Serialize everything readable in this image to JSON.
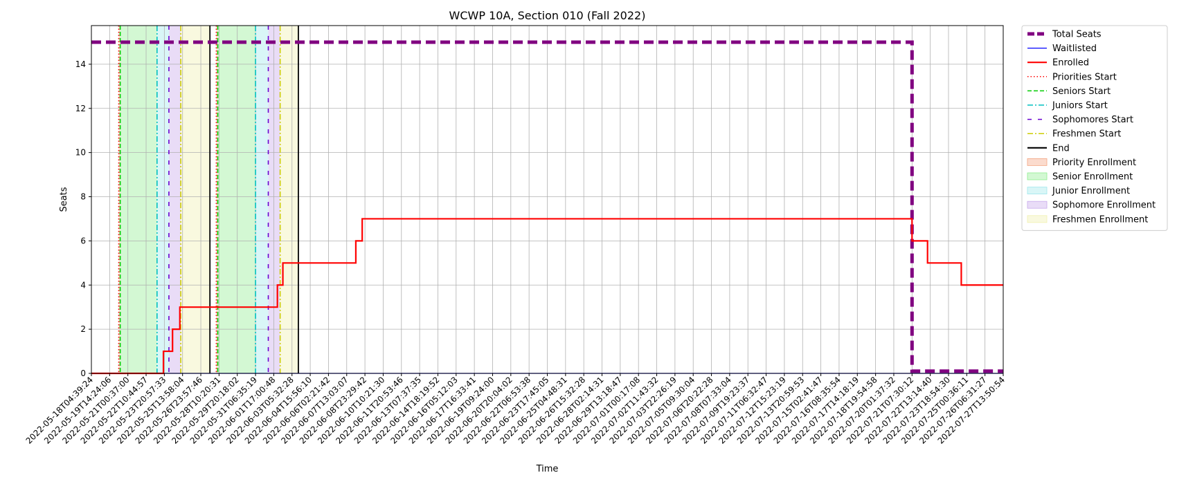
{
  "chart_data": {
    "type": "line",
    "title": "WCWP 10A, Section 010 (Fall 2022)",
    "xlabel": "Time",
    "ylabel": "Seats",
    "ylim": [
      0,
      15.75
    ],
    "y_ticks": [
      0,
      2,
      4,
      6,
      8,
      10,
      12,
      14
    ],
    "grid": true,
    "legend_position": "outside-right",
    "x_ticks": [
      "2022-05-18T04:39:24",
      "2022-05-19T14:24:06",
      "2022-05-21T00:37:00",
      "2022-05-22T10:44:57",
      "2022-05-23T20:57:33",
      "2022-05-25T13:58:04",
      "2022-05-26T23:57:46",
      "2022-05-28T10:20:31",
      "2022-05-29T20:18:02",
      "2022-05-31T06:35:19",
      "2022-06-01T17:00:48",
      "2022-06-03T05:32:28",
      "2022-06-04T15:56:10",
      "2022-06-06T02:21:42",
      "2022-06-07T13:03:07",
      "2022-06-08T23:29:42",
      "2022-06-10T10:21:30",
      "2022-06-11T20:53:46",
      "2022-06-13T07:37:35",
      "2022-06-14T18:19:52",
      "2022-06-16T05:12:03",
      "2022-06-17T16:33:41",
      "2022-06-19T09:24:00",
      "2022-06-20T20:04:02",
      "2022-06-22T06:53:38",
      "2022-06-23T17:45:05",
      "2022-06-25T04:48:31",
      "2022-06-26T15:32:28",
      "2022-06-28T02:14:31",
      "2022-06-29T13:18:47",
      "2022-07-01T00:17:08",
      "2022-07-02T11:43:32",
      "2022-07-03T22:26:19",
      "2022-07-05T09:30:04",
      "2022-07-06T20:22:28",
      "2022-07-08T07:33:04",
      "2022-07-09T19:23:37",
      "2022-07-11T06:32:47",
      "2022-07-12T15:23:19",
      "2022-07-13T20:59:53",
      "2022-07-15T02:41:47",
      "2022-07-16T08:35:54",
      "2022-07-17T14:18:19",
      "2022-07-18T19:54:58",
      "2022-07-20T01:37:32",
      "2022-07-21T07:30:12",
      "2022-07-22T13:14:40",
      "2022-07-23T18:54:30",
      "2022-07-25T00:36:11",
      "2022-07-26T06:31:27",
      "2022-07-27T13:50:54"
    ],
    "series": [
      {
        "name": "Total Seats",
        "color": "#800080",
        "style": "dashed-thick",
        "points": [
          [
            0,
            15
          ],
          [
            45.0,
            15
          ],
          [
            45.0,
            0.1
          ],
          [
            50,
            0.1
          ]
        ]
      },
      {
        "name": "Waitlisted",
        "color": "#0000ff",
        "style": "solid-thin",
        "points": [
          [
            0,
            0
          ],
          [
            50,
            0
          ]
        ]
      },
      {
        "name": "Enrolled",
        "color": "#ff0000",
        "style": "solid",
        "points": [
          [
            0,
            0
          ],
          [
            3.95,
            0
          ],
          [
            3.95,
            1
          ],
          [
            4.45,
            1
          ],
          [
            4.45,
            2
          ],
          [
            4.85,
            2
          ],
          [
            4.85,
            3
          ],
          [
            10.2,
            3
          ],
          [
            10.2,
            4
          ],
          [
            10.5,
            4
          ],
          [
            10.5,
            5
          ],
          [
            14.5,
            5
          ],
          [
            14.5,
            6
          ],
          [
            14.85,
            6
          ],
          [
            14.85,
            7
          ],
          [
            45.0,
            7
          ],
          [
            45.0,
            6
          ],
          [
            45.85,
            6
          ],
          [
            45.85,
            5
          ],
          [
            47.7,
            5
          ],
          [
            47.7,
            4
          ],
          [
            50,
            4
          ]
        ]
      }
    ],
    "vlines": [
      {
        "name": "Priorities Start",
        "color": "#ff0000",
        "style": "dotted",
        "x": [
          1.5,
          6.85
        ]
      },
      {
        "name": "Seniors Start",
        "color": "#00cc00",
        "style": "dashed",
        "x": [
          1.58,
          6.93
        ]
      },
      {
        "name": "Juniors Start",
        "color": "#00bfbf",
        "style": "dashdot",
        "x": [
          3.6,
          9.0
        ]
      },
      {
        "name": "Sophomores Start",
        "color": "#6a00d0",
        "style": "loosedash",
        "x": [
          4.25,
          9.7
        ]
      },
      {
        "name": "Freshmen Start",
        "color": "#cccc00",
        "style": "dashdot",
        "x": [
          4.9,
          10.35
        ]
      },
      {
        "name": "End",
        "color": "#000000",
        "style": "solid",
        "x": [
          6.5,
          11.35
        ]
      }
    ],
    "spans": [
      {
        "name": "Priority Enrollment",
        "color": "#f4a582",
        "ranges": [
          [
            1.5,
            1.58
          ],
          [
            6.85,
            6.93
          ]
        ]
      },
      {
        "name": "Senior Enrollment",
        "color": "#90ee90",
        "ranges": [
          [
            1.58,
            3.6
          ],
          [
            6.93,
            9.0
          ]
        ]
      },
      {
        "name": "Junior Enrollment",
        "color": "#a0e8ec",
        "ranges": [
          [
            3.6,
            4.25
          ],
          [
            9.0,
            9.7
          ]
        ]
      },
      {
        "name": "Sophomore Enrollment",
        "color": "#c8a8ec",
        "ranges": [
          [
            4.25,
            4.9
          ],
          [
            9.7,
            10.35
          ]
        ]
      },
      {
        "name": "Freshmen Enrollment",
        "color": "#f0f0b0",
        "ranges": [
          [
            4.9,
            6.5
          ],
          [
            10.35,
            11.35
          ]
        ]
      }
    ],
    "legend": [
      {
        "label": "Total Seats",
        "kind": "line",
        "color": "#800080",
        "style": "dashed-thick"
      },
      {
        "label": "Waitlisted",
        "kind": "line",
        "color": "#0000ff",
        "style": "solid-thin"
      },
      {
        "label": "Enrolled",
        "kind": "line",
        "color": "#ff0000",
        "style": "solid"
      },
      {
        "label": "Priorities Start",
        "kind": "line",
        "color": "#ff0000",
        "style": "dotted"
      },
      {
        "label": "Seniors Start",
        "kind": "line",
        "color": "#00cc00",
        "style": "dashed"
      },
      {
        "label": "Juniors Start",
        "kind": "line",
        "color": "#00bfbf",
        "style": "dashdot"
      },
      {
        "label": "Sophomores Start",
        "kind": "line",
        "color": "#6a00d0",
        "style": "loosedash"
      },
      {
        "label": "Freshmen Start",
        "kind": "line",
        "color": "#cccc00",
        "style": "dashdot"
      },
      {
        "label": "End",
        "kind": "line",
        "color": "#000000",
        "style": "solid"
      },
      {
        "label": "Priority Enrollment",
        "kind": "patch",
        "color": "#f4a582"
      },
      {
        "label": "Senior Enrollment",
        "kind": "patch",
        "color": "#90ee90"
      },
      {
        "label": "Junior Enrollment",
        "kind": "patch",
        "color": "#a0e8ec"
      },
      {
        "label": "Sophomore Enrollment",
        "kind": "patch",
        "color": "#c8a8ec"
      },
      {
        "label": "Freshmen Enrollment",
        "kind": "patch",
        "color": "#f0f0b0"
      }
    ]
  }
}
